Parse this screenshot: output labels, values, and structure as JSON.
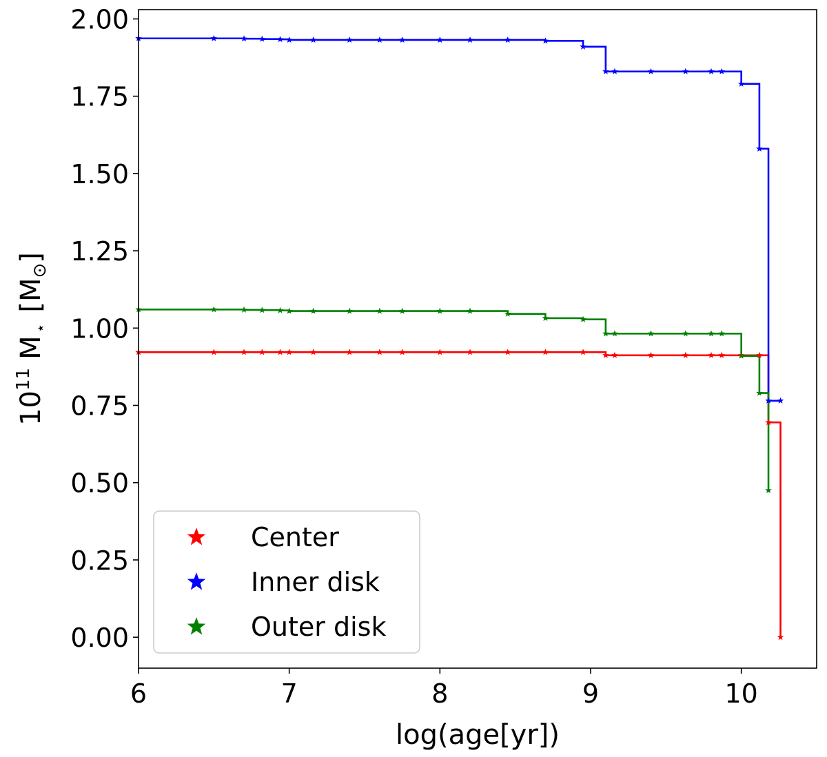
{
  "chart_data": {
    "type": "line",
    "step": "post",
    "xlabel": "log(age[yr])",
    "ylabel": {
      "base": "10",
      "exponent": "11",
      "quantity": "M",
      "quantity_sub": "⋆",
      "unit_open": "[M",
      "unit_sub": "⊙",
      "unit_close": "]"
    },
    "xlim": [
      6.0,
      10.5
    ],
    "ylim": [
      -0.1,
      2.03
    ],
    "xticks": [
      6,
      7,
      8,
      9,
      10
    ],
    "xtick_labels": [
      "6",
      "7",
      "8",
      "9",
      "10"
    ],
    "yticks": [
      0.0,
      0.25,
      0.5,
      0.75,
      1.0,
      1.25,
      1.5,
      1.75,
      2.0
    ],
    "ytick_labels": [
      "0.00",
      "0.25",
      "0.50",
      "0.75",
      "1.00",
      "1.25",
      "1.50",
      "1.75",
      "2.00"
    ],
    "grid": false,
    "legend_position": "lower-left",
    "series": [
      {
        "name": "Center",
        "color": "#ff0000",
        "marker": "star",
        "x": [
          6.0,
          6.5,
          6.7,
          6.82,
          6.94,
          7.0,
          7.16,
          7.4,
          7.6,
          7.75,
          8.0,
          8.2,
          8.45,
          8.7,
          8.95,
          9.1,
          9.16,
          9.4,
          9.63,
          9.8,
          9.87,
          10.0,
          10.12,
          10.18,
          10.26
        ],
        "y": [
          0.922,
          0.922,
          0.922,
          0.922,
          0.922,
          0.922,
          0.922,
          0.922,
          0.922,
          0.922,
          0.922,
          0.922,
          0.922,
          0.922,
          0.922,
          0.912,
          0.912,
          0.912,
          0.912,
          0.912,
          0.912,
          0.912,
          0.912,
          0.695,
          0.0
        ]
      },
      {
        "name": "Inner disk",
        "color": "#0000ff",
        "marker": "star",
        "x": [
          6.0,
          6.5,
          6.7,
          6.82,
          6.94,
          7.0,
          7.16,
          7.4,
          7.6,
          7.75,
          8.0,
          8.2,
          8.45,
          8.7,
          8.95,
          9.1,
          9.16,
          9.4,
          9.63,
          9.8,
          9.87,
          10.0,
          10.12,
          10.18,
          10.26
        ],
        "y": [
          1.937,
          1.937,
          1.936,
          1.935,
          1.934,
          1.932,
          1.932,
          1.932,
          1.932,
          1.932,
          1.932,
          1.932,
          1.932,
          1.929,
          1.91,
          1.83,
          1.83,
          1.83,
          1.83,
          1.83,
          1.83,
          1.79,
          1.58,
          0.765,
          0.765
        ]
      },
      {
        "name": "Outer disk",
        "color": "#008000",
        "marker": "star",
        "x": [
          6.0,
          6.5,
          6.7,
          6.82,
          6.94,
          7.0,
          7.16,
          7.4,
          7.6,
          7.75,
          8.0,
          8.2,
          8.45,
          8.7,
          8.95,
          9.1,
          9.16,
          9.4,
          9.63,
          9.8,
          9.87,
          10.0,
          10.12,
          10.18
        ],
        "y": [
          1.06,
          1.06,
          1.059,
          1.058,
          1.057,
          1.055,
          1.055,
          1.055,
          1.055,
          1.055,
          1.055,
          1.055,
          1.046,
          1.032,
          1.028,
          0.982,
          0.982,
          0.982,
          0.982,
          0.982,
          0.982,
          0.91,
          0.79,
          0.475
        ]
      }
    ]
  }
}
